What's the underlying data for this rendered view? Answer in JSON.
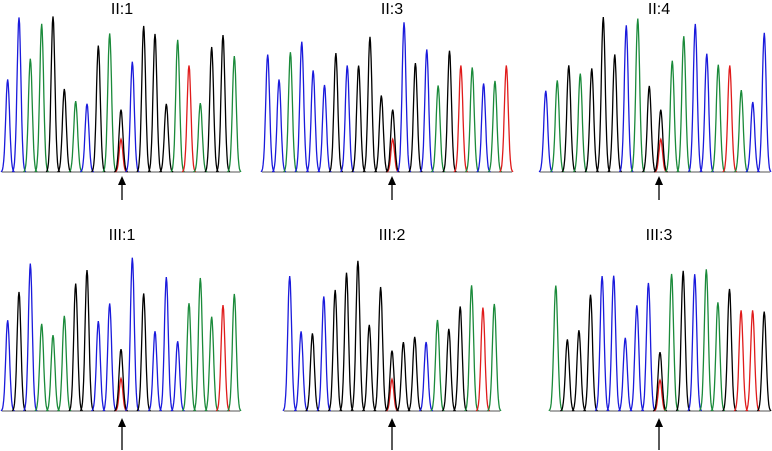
{
  "panels": [
    {
      "label": "II:1"
    },
    {
      "label": "II:3"
    },
    {
      "label": "II:4"
    },
    {
      "label": "III:1"
    },
    {
      "label": "III:2"
    },
    {
      "label": "III:3"
    }
  ]
}
